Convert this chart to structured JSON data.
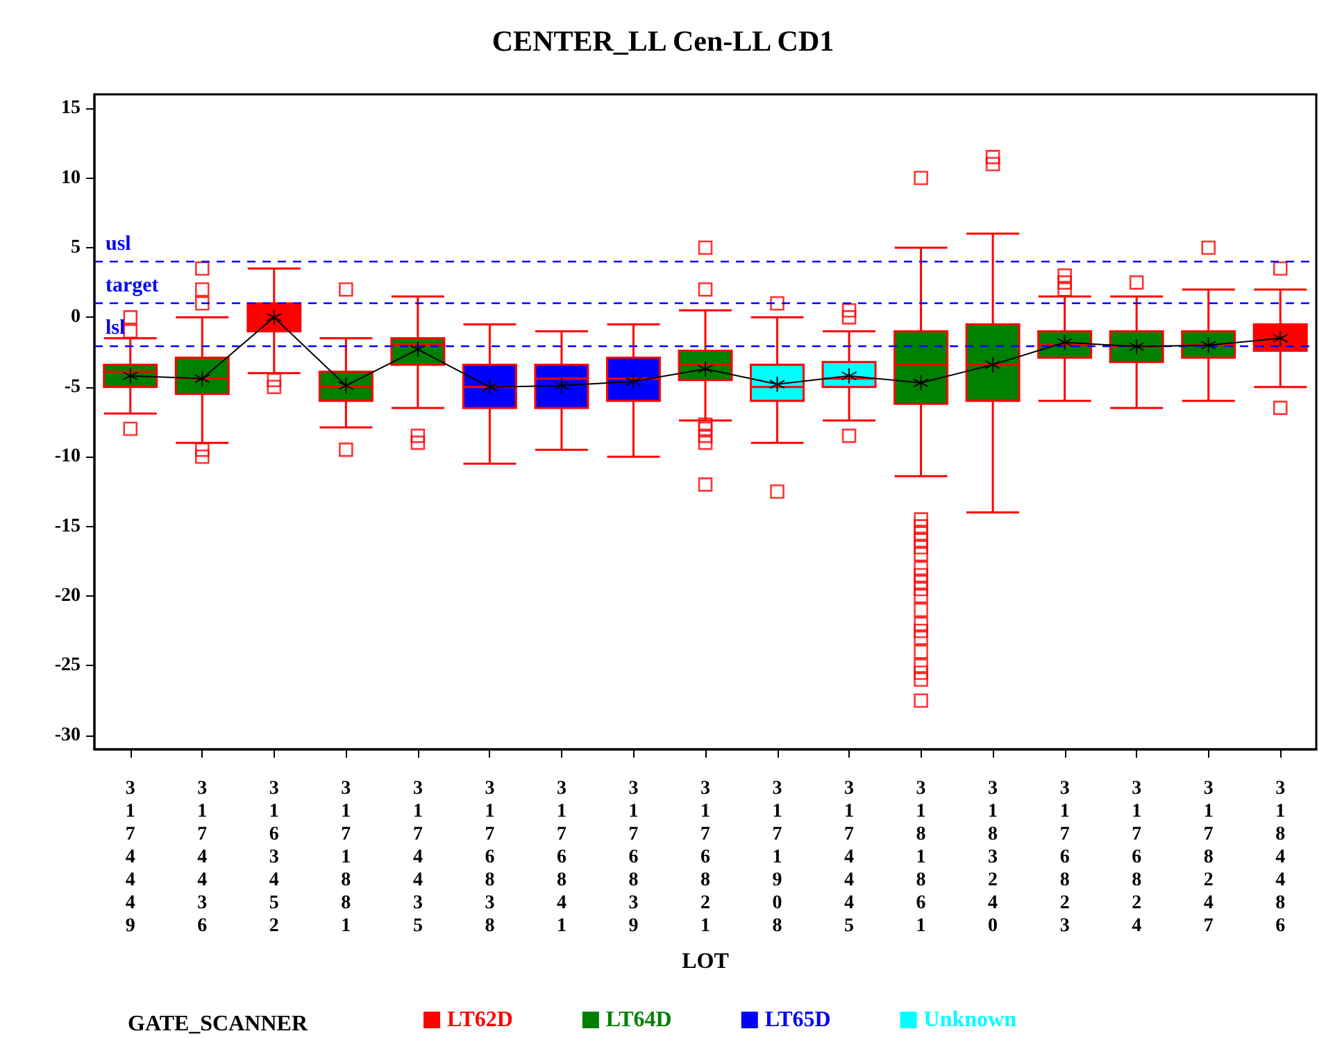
{
  "chart_data": {
    "type": "box",
    "title": "CENTER_LL Cen-LL CD1",
    "xlabel": "LOT",
    "legend_title": "GATE_SCANNER",
    "categories": [
      "3174449",
      "3174436",
      "3163452",
      "3171881",
      "3174435",
      "3176838",
      "3176841",
      "3176839",
      "3176821",
      "3171908",
      "3174445",
      "3181861",
      "3183240",
      "3176823",
      "3176824",
      "3178247",
      "3184486"
    ],
    "series": [
      {
        "name": "LT62D",
        "color": "#ff0000",
        "boxes": [
          null,
          null,
          {
            "low": -4,
            "q1": -1,
            "median": 0,
            "q3": 1,
            "high": 3.5,
            "outliers": [
              -4.5,
              -5
            ]
          },
          null,
          null,
          null,
          null,
          null,
          null,
          null,
          null,
          null,
          null,
          null,
          null,
          null,
          {
            "low": -5,
            "q1": -2.4,
            "median": -1.5,
            "q3": -0.5,
            "high": 2,
            "outliers": [
              3.5,
              -6.5
            ]
          }
        ]
      },
      {
        "name": "LT64D",
        "color": "#008000",
        "boxes": [
          {
            "low": -6.9,
            "q1": -5,
            "median": -3.9,
            "q3": -3.4,
            "high": -1.5,
            "outliers": [
              0,
              -1,
              -8
            ]
          },
          {
            "low": -9,
            "q1": -5.5,
            "median": -4.4,
            "q3": -2.9,
            "high": 0,
            "outliers": [
              3.5,
              2,
              1,
              -9.5,
              -10
            ]
          },
          null,
          {
            "low": -7.9,
            "q1": -6,
            "median": -5,
            "q3": -3.9,
            "high": -1.5,
            "outliers": [
              2,
              -9.5
            ]
          },
          {
            "low": -6.5,
            "q1": -3.4,
            "median": -2,
            "q3": -1.5,
            "high": 1.5,
            "outliers": [
              -8.5,
              -9
            ]
          },
          null,
          null,
          null,
          {
            "low": -7.4,
            "q1": -4.5,
            "median": -3.4,
            "q3": -2.4,
            "high": 0.5,
            "outliers": [
              5,
              2,
              -7.7,
              -8,
              -8.5,
              -9,
              -12
            ]
          },
          null,
          null,
          {
            "low": -11.4,
            "q1": -6.2,
            "median": -3.4,
            "q3": -1,
            "high": 5,
            "outliers": [
              10,
              -14.5,
              -15,
              -15.5,
              -16,
              -16.5,
              -17,
              -18,
              -18.5,
              -19,
              -19.5,
              -20,
              -21,
              -22,
              -22.5,
              -23,
              -24,
              -25,
              -25.5,
              -26,
              -27.5
            ]
          },
          {
            "low": -14,
            "q1": -6,
            "median": -3.4,
            "q3": -0.5,
            "high": 6,
            "outliers": [
              11.5,
              11
            ]
          },
          {
            "low": -6,
            "q1": -2.9,
            "median": -2,
            "q3": -1,
            "high": 1.5,
            "outliers": [
              3,
              2.5,
              2
            ]
          },
          {
            "low": -6.5,
            "q1": -3.2,
            "median": -2.1,
            "q3": -1,
            "high": 1.5,
            "outliers": [
              2.5
            ]
          },
          {
            "low": -6,
            "q1": -2.9,
            "median": -2,
            "q3": -1,
            "high": 2,
            "outliers": [
              5
            ]
          },
          null
        ]
      },
      {
        "name": "LT65D",
        "color": "#0000ff",
        "boxes": [
          null,
          null,
          null,
          null,
          null,
          {
            "low": -10.5,
            "q1": -6.5,
            "median": -5,
            "q3": -3.4,
            "high": -0.5
          },
          {
            "low": -9.5,
            "q1": -6.5,
            "median": -4.4,
            "q3": -3.4,
            "high": -1
          },
          {
            "low": -10,
            "q1": -6,
            "median": -4.4,
            "q3": -2.9,
            "high": -0.5
          },
          null,
          null,
          null,
          null,
          null,
          null,
          null,
          null,
          null
        ]
      },
      {
        "name": "Unknown",
        "color": "#00ffff",
        "boxes": [
          null,
          null,
          null,
          null,
          null,
          null,
          null,
          null,
          null,
          {
            "low": -9,
            "q1": -6,
            "median": -5,
            "q3": -3.4,
            "high": 0,
            "outliers": [
              1,
              -12.5
            ]
          },
          {
            "low": -7.4,
            "q1": -5,
            "median": -4.4,
            "q3": -3.2,
            "high": -1,
            "outliers": [
              0.5,
              0,
              -8.5
            ]
          },
          null,
          null,
          null,
          null,
          null,
          null
        ]
      },
      {
        "type": "line",
        "color": "#000000",
        "marker": "star",
        "values": [
          -4.2,
          -4.4,
          0,
          -4.9,
          -2.3,
          -5,
          -4.9,
          -4.6,
          -3.7,
          -4.8,
          -4.2,
          -4.7,
          -3.4,
          -1.8,
          -2.1,
          -2,
          -1.5
        ]
      }
    ],
    "ylim": [
      -31,
      16
    ],
    "yticks": [
      -30,
      -25,
      -20,
      -15,
      -10,
      -5,
      0,
      5,
      10,
      15
    ],
    "grid": false,
    "legend": "bottom",
    "ref_lines": [
      {
        "axis": "y",
        "value": 4,
        "label": "usl",
        "color": "#0000ff",
        "line_style": "dashed"
      },
      {
        "axis": "y",
        "value": 1,
        "label": "target",
        "color": "#0000ff",
        "line_style": "dashed"
      },
      {
        "axis": "y",
        "value": -2,
        "label": "lsl",
        "color": "#0000ff",
        "line_style": "dashed"
      }
    ]
  }
}
